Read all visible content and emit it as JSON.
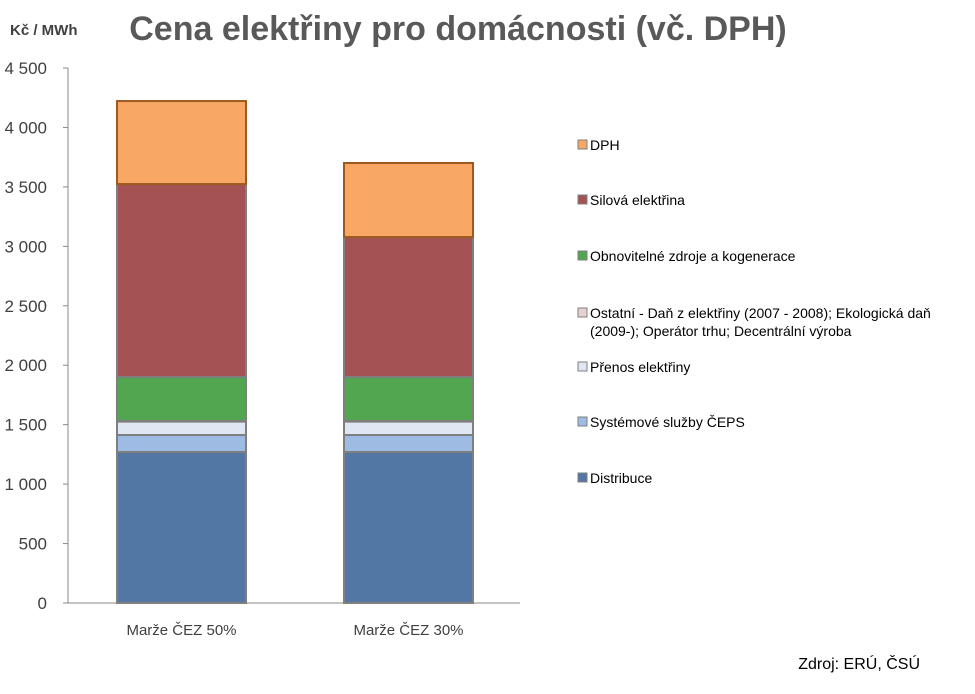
{
  "chart_data": {
    "type": "bar",
    "stacked": true,
    "title": "Cena elektřiny pro domácnosti (vč. DPH)",
    "ylabel": "Kč / MWh",
    "xlabel": "",
    "ylim": [
      0,
      4500
    ],
    "yticks": [
      0,
      500,
      1000,
      1500,
      2000,
      2500,
      3000,
      3500,
      4000,
      4500
    ],
    "ytick_labels": [
      "0",
      "500",
      "1 000",
      "1 500",
      "2 000",
      "2 500",
      "3 000",
      "3 500",
      "4 000",
      "4 500"
    ],
    "categories": [
      "Marže ČEZ 50%",
      "Marže ČEZ 30%"
    ],
    "legend_position": "right",
    "series": [
      {
        "name": "Distribuce",
        "color": "#5377a4",
        "values": [
          1270,
          1270
        ]
      },
      {
        "name": "Systémové služby ČEPS",
        "color": "#9dbbe3",
        "values": [
          143,
          143
        ]
      },
      {
        "name": "Přenos elektřiny",
        "color": "#dfe7f3",
        "values": [
          113,
          113
        ]
      },
      {
        "name": "Ostatní - Daň z elektřiny (2007 - 2008); Ekologická daň (2009-); Operátor trhu; Decentrální výroba",
        "legend_lines": [
          "Ostatní - Daň z elektřiny (2007 - 2008); Ekologická daň",
          "(2009-); Operátor trhu; Decentrální výroba"
        ],
        "color": "#e8d0d0",
        "values": [
          5,
          5
        ]
      },
      {
        "name": "Obnovitelné zdroje a kogenerace",
        "color": "#52a650",
        "values": [
          370,
          370
        ]
      },
      {
        "name": "Silová elektřina",
        "color": "#a45253",
        "values": [
          1623,
          1177
        ]
      },
      {
        "name": "DPH",
        "color": "#f8a764",
        "values": [
          698,
          623
        ]
      }
    ],
    "source": "Zdroj: ERÚ, ČSÚ"
  }
}
